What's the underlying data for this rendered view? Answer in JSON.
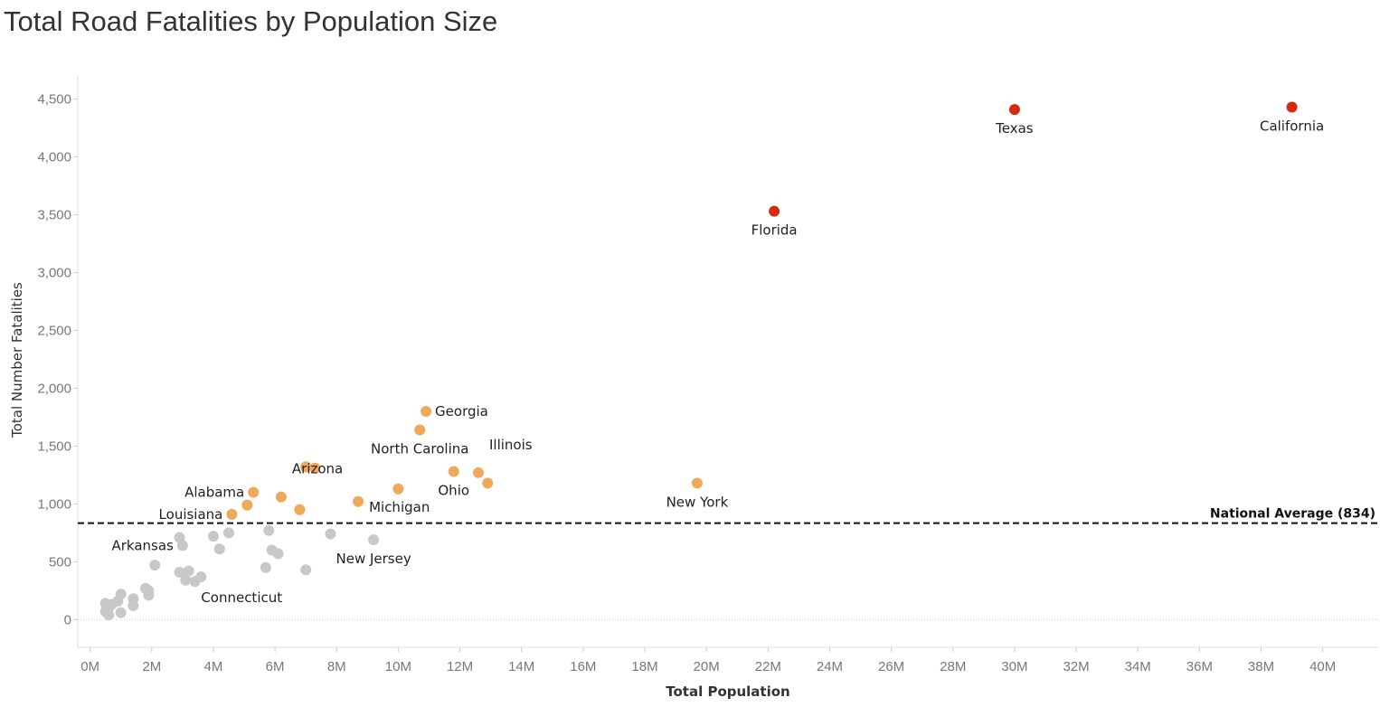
{
  "chart_data": {
    "type": "scatter",
    "title": "Total Road Fatalities by Population Size",
    "xlabel": "Total Population",
    "ylabel": "Total Number Fatalities",
    "xlim": [
      -0.4,
      41.8
    ],
    "ylim": [
      -240,
      4700
    ],
    "x_ticks": [
      0,
      2,
      4,
      6,
      8,
      10,
      12,
      14,
      16,
      18,
      20,
      22,
      24,
      26,
      28,
      30,
      32,
      34,
      36,
      38,
      40
    ],
    "x_tick_labels": [
      "0M",
      "2M",
      "4M",
      "6M",
      "8M",
      "10M",
      "12M",
      "14M",
      "16M",
      "18M",
      "20M",
      "22M",
      "24M",
      "26M",
      "28M",
      "30M",
      "32M",
      "34M",
      "36M",
      "38M",
      "40M"
    ],
    "y_ticks": [
      0,
      500,
      1000,
      1500,
      2000,
      2500,
      3000,
      3500,
      4000,
      4500
    ],
    "y_tick_labels": [
      "0",
      "500",
      "1,000",
      "1,500",
      "2,000",
      "2,500",
      "3,000",
      "3,500",
      "4,000",
      "4,500"
    ],
    "grid": false,
    "reference_line": {
      "value": 834,
      "label": "National Average (834)"
    },
    "colors": {
      "high": "#d62a0c",
      "mid": "#f0a85a",
      "low": "#c8c8c8"
    },
    "points": [
      {
        "label": "California",
        "x": 39.0,
        "y": 4430,
        "group": "high",
        "label_pos": "below"
      },
      {
        "label": "Texas",
        "x": 30.0,
        "y": 4410,
        "group": "high",
        "label_pos": "below"
      },
      {
        "label": "Florida",
        "x": 22.2,
        "y": 3530,
        "group": "high",
        "label_pos": "below"
      },
      {
        "label": "Georgia",
        "x": 10.9,
        "y": 1800,
        "group": "mid",
        "label_pos": "right"
      },
      {
        "label": "North Carolina",
        "x": 10.7,
        "y": 1640,
        "group": "mid",
        "label_pos": "below"
      },
      {
        "label": "Illinois",
        "x": 12.6,
        "y": 1270,
        "group": "mid",
        "label_pos": "above-right"
      },
      {
        "label": "",
        "x": 12.9,
        "y": 1180,
        "group": "mid"
      },
      {
        "label": "Ohio",
        "x": 11.8,
        "y": 1280,
        "group": "mid",
        "label_pos": "below"
      },
      {
        "label": "New York",
        "x": 19.7,
        "y": 1180,
        "group": "mid",
        "label_pos": "below"
      },
      {
        "label": "",
        "x": 10.0,
        "y": 1130,
        "group": "mid"
      },
      {
        "label": "Michigan",
        "x": 8.7,
        "y": 1020,
        "group": "mid",
        "label_pos": "right-below"
      },
      {
        "label": "",
        "x": 7.0,
        "y": 1320,
        "group": "mid"
      },
      {
        "label": "",
        "x": 7.3,
        "y": 1310,
        "group": "mid"
      },
      {
        "label": "Arizona",
        "x": 6.2,
        "y": 1060,
        "group": "mid",
        "label_pos": "above-right"
      },
      {
        "label": "",
        "x": 6.8,
        "y": 950,
        "group": "mid"
      },
      {
        "label": "Alabama",
        "x": 5.3,
        "y": 1100,
        "group": "mid",
        "label_pos": "left"
      },
      {
        "label": "",
        "x": 5.1,
        "y": 990,
        "group": "mid"
      },
      {
        "label": "Louisiana",
        "x": 4.6,
        "y": 910,
        "group": "mid",
        "label_pos": "left"
      },
      {
        "label": "Arkansas",
        "x": 3.0,
        "y": 640,
        "group": "low",
        "label_pos": "left"
      },
      {
        "label": "",
        "x": 2.9,
        "y": 710,
        "group": "low"
      },
      {
        "label": "Connecticut",
        "x": 3.6,
        "y": 370,
        "group": "low",
        "label_pos": "below-right"
      },
      {
        "label": "New Jersey",
        "x": 9.2,
        "y": 690,
        "group": "low",
        "label_pos": "below"
      },
      {
        "label": "",
        "x": 7.8,
        "y": 740,
        "group": "low"
      },
      {
        "label": "",
        "x": 7.0,
        "y": 430,
        "group": "low"
      },
      {
        "label": "",
        "x": 5.8,
        "y": 770,
        "group": "low"
      },
      {
        "label": "",
        "x": 5.9,
        "y": 600,
        "group": "low"
      },
      {
        "label": "",
        "x": 6.1,
        "y": 570,
        "group": "low"
      },
      {
        "label": "",
        "x": 5.7,
        "y": 450,
        "group": "low"
      },
      {
        "label": "",
        "x": 4.5,
        "y": 750,
        "group": "low"
      },
      {
        "label": "",
        "x": 4.0,
        "y": 720,
        "group": "low"
      },
      {
        "label": "",
        "x": 4.2,
        "y": 610,
        "group": "low"
      },
      {
        "label": "",
        "x": 3.2,
        "y": 420,
        "group": "low"
      },
      {
        "label": "",
        "x": 2.9,
        "y": 410,
        "group": "low"
      },
      {
        "label": "",
        "x": 3.1,
        "y": 340,
        "group": "low"
      },
      {
        "label": "",
        "x": 3.4,
        "y": 330,
        "group": "low"
      },
      {
        "label": "",
        "x": 2.1,
        "y": 470,
        "group": "low"
      },
      {
        "label": "",
        "x": 1.8,
        "y": 270,
        "group": "low"
      },
      {
        "label": "",
        "x": 1.9,
        "y": 250,
        "group": "low"
      },
      {
        "label": "",
        "x": 1.9,
        "y": 210,
        "group": "low"
      },
      {
        "label": "",
        "x": 1.4,
        "y": 180,
        "group": "low"
      },
      {
        "label": "",
        "x": 1.4,
        "y": 120,
        "group": "low"
      },
      {
        "label": "",
        "x": 1.0,
        "y": 220,
        "group": "low"
      },
      {
        "label": "",
        "x": 0.9,
        "y": 160,
        "group": "low"
      },
      {
        "label": "",
        "x": 0.7,
        "y": 130,
        "group": "low"
      },
      {
        "label": "",
        "x": 0.6,
        "y": 100,
        "group": "low"
      },
      {
        "label": "",
        "x": 0.5,
        "y": 140,
        "group": "low"
      },
      {
        "label": "",
        "x": 0.5,
        "y": 70,
        "group": "low"
      },
      {
        "label": "",
        "x": 0.6,
        "y": 40,
        "group": "low"
      },
      {
        "label": "",
        "x": 1.0,
        "y": 60,
        "group": "low"
      }
    ]
  }
}
